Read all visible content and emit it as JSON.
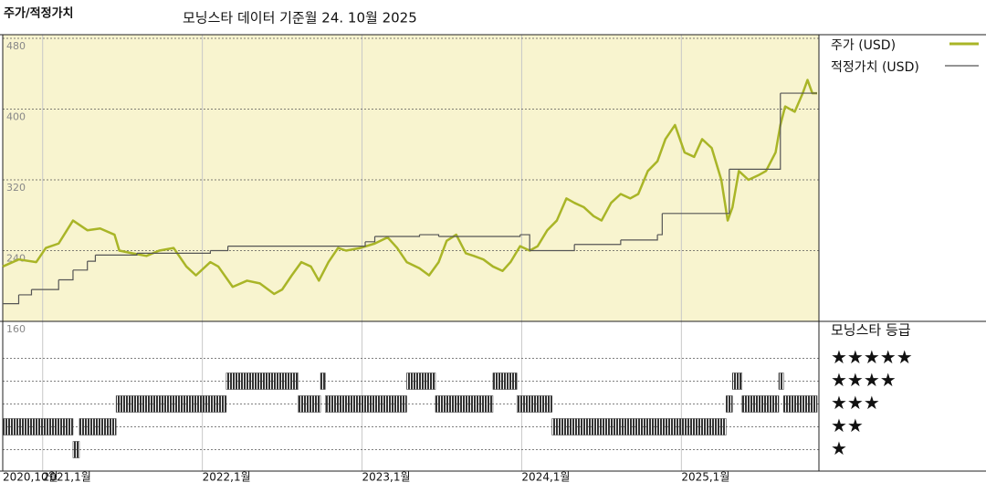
{
  "chart_data": [
    {
      "type": "line",
      "title": "주가/적정가치",
      "subtitle": "모닝스타 데이터 기준월 24. 10월 2025",
      "xlim": [
        2020.75,
        2025.85
      ],
      "xticks": [
        {
          "value": 2020.75,
          "label": "2020,10월"
        },
        {
          "value": 2021,
          "label": "2021,1월"
        },
        {
          "value": 2022,
          "label": "2022,1월"
        },
        {
          "value": 2023,
          "label": "2023,1월"
        },
        {
          "value": 2024,
          "label": "2024,1월"
        },
        {
          "value": 2025,
          "label": "2025,1월"
        }
      ],
      "ylim": [
        160,
        480
      ],
      "yticks": [
        160,
        240,
        320,
        400,
        480
      ],
      "grid": true,
      "series": [
        {
          "name": "주가 (USD)",
          "color": "#a9b527",
          "style": "line",
          "x": [
            2020.75,
            2020.85,
            2020.96,
            2021.02,
            2021.1,
            2021.19,
            2021.28,
            2021.36,
            2021.45,
            2021.48,
            2021.56,
            2021.65,
            2021.73,
            2021.82,
            2021.9,
            2021.96,
            2022.05,
            2022.1,
            2022.19,
            2022.28,
            2022.36,
            2022.45,
            2022.5,
            2022.56,
            2022.62,
            2022.68,
            2022.73,
            2022.79,
            2022.85,
            2022.9,
            2022.99,
            2023.08,
            2023.16,
            2023.22,
            2023.28,
            2023.36,
            2023.42,
            2023.48,
            2023.53,
            2023.59,
            2023.65,
            2023.7,
            2023.76,
            2023.82,
            2023.88,
            2023.93,
            2023.99,
            2024.05,
            2024.1,
            2024.16,
            2024.22,
            2024.28,
            2024.33,
            2024.39,
            2024.45,
            2024.5,
            2024.56,
            2024.62,
            2024.68,
            2024.73,
            2024.79,
            2024.85,
            2024.9,
            2024.96,
            2025.02,
            2025.08,
            2025.13,
            2025.19,
            2025.25,
            2025.29,
            2025.32,
            2025.36,
            2025.42,
            2025.48,
            2025.53,
            2025.59,
            2025.62,
            2025.65,
            2025.71,
            2025.76,
            2025.79,
            2025.82,
            2025.85
          ],
          "values": [
            222,
            230,
            227,
            243,
            248,
            274,
            263,
            265,
            258,
            240,
            237,
            234,
            240,
            243,
            222,
            212,
            227,
            222,
            199,
            206,
            203,
            191,
            196,
            212,
            227,
            222,
            206,
            227,
            243,
            240,
            243,
            248,
            255,
            243,
            227,
            220,
            212,
            227,
            251,
            258,
            237,
            234,
            230,
            222,
            217,
            227,
            245,
            240,
            245,
            263,
            274,
            299,
            294,
            289,
            279,
            274,
            294,
            304,
            299,
            304,
            330,
            341,
            366,
            382,
            351,
            346,
            366,
            356,
            320,
            274,
            289,
            330,
            320,
            325,
            330,
            351,
            382,
            403,
            397,
            418,
            433,
            418,
            418
          ]
        },
        {
          "name": "적정가치 (USD)",
          "color": "#555555",
          "style": "step",
          "x": [
            2020.75,
            2020.85,
            2020.93,
            2021.1,
            2021.19,
            2021.28,
            2021.33,
            2021.59,
            2022.05,
            2022.16,
            2023.02,
            2023.08,
            2023.36,
            2023.48,
            2023.99,
            2024.05,
            2024.33,
            2024.62,
            2024.85,
            2024.88,
            2025.28,
            2025.3,
            2025.62,
            2025.85
          ],
          "values": [
            180,
            190,
            196,
            207,
            218,
            228,
            235,
            237,
            240,
            245,
            250,
            256,
            258,
            256,
            258,
            240,
            247,
            252,
            258,
            282,
            282,
            332,
            418,
            418
          ]
        }
      ]
    },
    {
      "type": "rating",
      "title": "모닝스타 등급",
      "color": "#333333",
      "ylim": [
        0.5,
        5.5
      ],
      "yticks": [
        {
          "value": 5,
          "label": "★★★★★"
        },
        {
          "value": 4,
          "label": "★★★★"
        },
        {
          "value": 3,
          "label": "★★★"
        },
        {
          "value": 2,
          "label": "★★"
        },
        {
          "value": 1,
          "label": "★"
        }
      ],
      "x": [
        2020.75,
        2021.19,
        2021.23,
        2021.46,
        2022.15,
        2022.6,
        2022.74,
        2022.77,
        2023.28,
        2023.46,
        2023.82,
        2023.97,
        2024.19,
        2025.28,
        2025.32,
        2025.38,
        2025.61,
        2025.64
      ],
      "values": [
        2,
        1,
        2,
        3,
        4,
        3,
        4,
        3,
        4,
        3,
        4,
        3,
        2,
        3,
        4,
        3,
        4,
        3
      ]
    }
  ]
}
